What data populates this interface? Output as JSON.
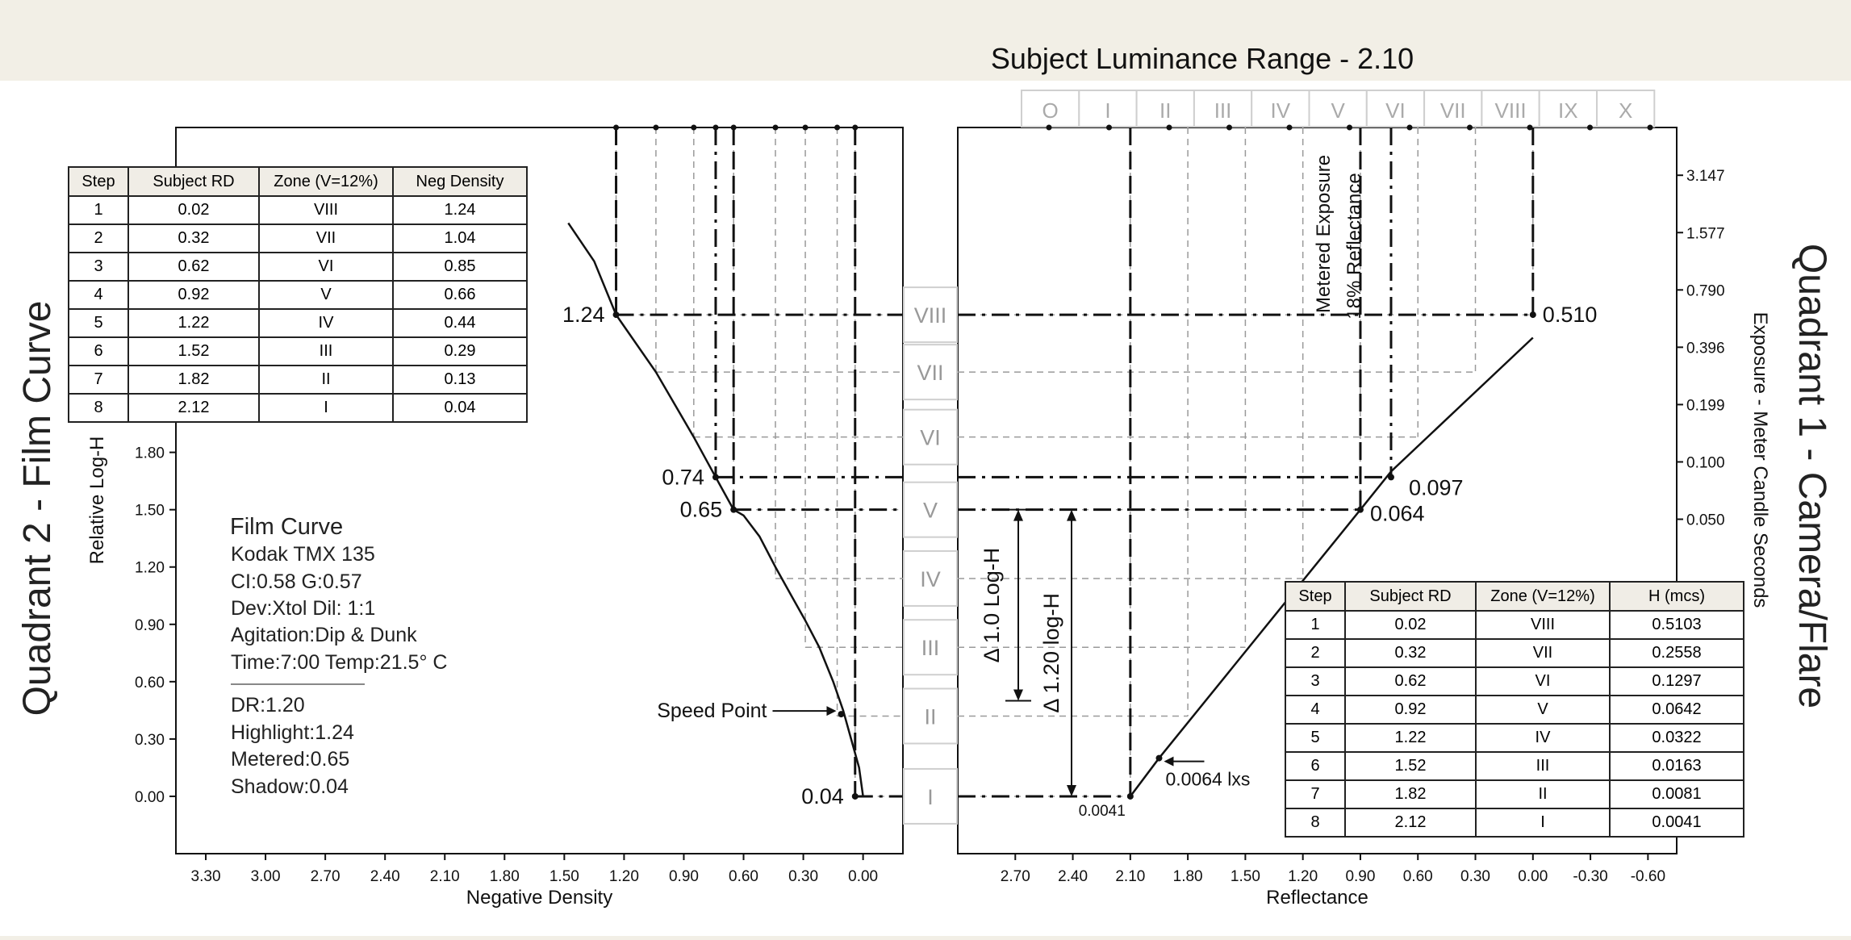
{
  "top_title": "Subject Luminance Range - 2.10",
  "left_title": "Quadrant 2 - Film Curve",
  "right_title": "Quadrant 1 - Camera/Flare",
  "colors": {
    "background": "#f2efe6",
    "plot": "#ffffff",
    "ink": "#111111",
    "grid": "#9a9a9a",
    "zone_box": "#cfcfcf"
  },
  "film_info": {
    "title": "Film Curve",
    "lines": [
      "Kodak TMX 135",
      "CI:0.58   G:0.57",
      "Dev:Xtol   Dil: 1:1",
      "Agitation:Dip & Dunk",
      "Time:7:00   Temp:21.5° C"
    ],
    "stats": [
      "DR:1.20",
      "Highlight:1.24",
      "Metered:0.65",
      "Shadow:0.04"
    ]
  },
  "table_q2": {
    "headers": [
      "Step",
      "Subject RD",
      "Zone (V=12%)",
      "Neg Density"
    ],
    "rows": [
      [
        "1",
        "0.02",
        "VIII",
        "1.24"
      ],
      [
        "2",
        "0.32",
        "VII",
        "1.04"
      ],
      [
        "3",
        "0.62",
        "VI",
        "0.85"
      ],
      [
        "4",
        "0.92",
        "V",
        "0.66"
      ],
      [
        "5",
        "1.22",
        "IV",
        "0.44"
      ],
      [
        "6",
        "1.52",
        "III",
        "0.29"
      ],
      [
        "7",
        "1.82",
        "II",
        "0.13"
      ],
      [
        "8",
        "2.12",
        "I",
        "0.04"
      ]
    ]
  },
  "table_q1": {
    "headers": [
      "Step",
      "Subject RD",
      "Zone (V=12%)",
      "H (mcs)"
    ],
    "rows": [
      [
        "1",
        "0.02",
        "VIII",
        "0.5103"
      ],
      [
        "2",
        "0.32",
        "VII",
        "0.2558"
      ],
      [
        "3",
        "0.62",
        "VI",
        "0.1297"
      ],
      [
        "4",
        "0.92",
        "V",
        "0.0642"
      ],
      [
        "5",
        "1.22",
        "IV",
        "0.0322"
      ],
      [
        "6",
        "1.52",
        "III",
        "0.0163"
      ],
      [
        "7",
        "1.82",
        "II",
        "0.0081"
      ],
      [
        "8",
        "2.12",
        "I",
        "0.0041"
      ]
    ]
  },
  "chart_data": [
    {
      "type": "line",
      "title": "Quadrant 2 - Film Curve",
      "xlabel": "Negative Density",
      "ylabel": "Relative Log-H",
      "x_reversed": true,
      "xlim": [
        3.45,
        -0.2
      ],
      "ylim": [
        -0.3,
        3.5
      ],
      "x_ticks": [
        "3.30",
        "3.00",
        "2.70",
        "2.40",
        "2.10",
        "1.80",
        "1.50",
        "1.20",
        "0.90",
        "0.60",
        "0.30",
        "0.00"
      ],
      "y_ticks": [
        "0.00",
        "0.30",
        "0.60",
        "0.90",
        "1.20",
        "1.50",
        "1.80"
      ],
      "grid": false,
      "series": [
        {
          "values_xy": [
            [
              0.0,
              0.0
            ],
            [
              0.02,
              0.15
            ],
            [
              0.06,
              0.3
            ],
            [
              0.1,
              0.45
            ],
            [
              0.15,
              0.6
            ],
            [
              0.22,
              0.78
            ],
            [
              0.29,
              0.92
            ],
            [
              0.36,
              1.05
            ],
            [
              0.44,
              1.2
            ],
            [
              0.52,
              1.36
            ],
            [
              0.6,
              1.47
            ],
            [
              0.65,
              1.5
            ],
            [
              0.74,
              1.67
            ],
            [
              0.85,
              1.88
            ],
            [
              1.04,
              2.22
            ],
            [
              1.24,
              2.52
            ],
            [
              1.35,
              2.8
            ],
            [
              1.48,
              3.0
            ]
          ]
        }
      ],
      "density_marks": [
        "1.24",
        "0.74",
        "0.65",
        "0.04"
      ],
      "annotations": [
        "Speed Point"
      ]
    },
    {
      "type": "line",
      "title": "Quadrant 1 - Camera/Flare",
      "xlabel": "Reflectance",
      "ylabel": "Exposure - Meter Candle Seconds",
      "x_reversed": true,
      "xlim": [
        3.0,
        -0.75
      ],
      "ylim": [
        -0.3,
        3.5
      ],
      "x_ticks": [
        "2.70",
        "2.40",
        "2.10",
        "1.80",
        "1.50",
        "1.20",
        "0.90",
        "0.60",
        "0.30",
        "0.00",
        "-0.30",
        "-0.60"
      ],
      "y_ticks_right": [
        "3.147",
        "1.577",
        "0.790",
        "0.396",
        "0.199",
        "0.100",
        "0.050"
      ],
      "grid": false,
      "zones_top": [
        "O",
        "I",
        "II",
        "III",
        "IV",
        "V",
        "VI",
        "VII",
        "VIII",
        "IX",
        "X"
      ],
      "series": [
        {
          "values_xy": [
            [
              2.1,
              0.0
            ],
            [
              1.95,
              0.2
            ],
            [
              0.9,
              1.5
            ],
            [
              0.74,
              1.7
            ],
            [
              0.0,
              2.4
            ]
          ]
        }
      ],
      "exposure_marks": [
        "0.510",
        "0.097",
        "0.064",
        "0.0041"
      ],
      "annotations": [
        "0.0064 lxs",
        "Metered Exposure",
        "18% Reflectance",
        "Δ 1.0 Log-H",
        "Δ 1.20 log-H"
      ]
    }
  ],
  "zone_scale": {
    "labels": [
      "VIII",
      "VII",
      "VI",
      "V",
      "IV",
      "III",
      "II",
      "I"
    ]
  }
}
